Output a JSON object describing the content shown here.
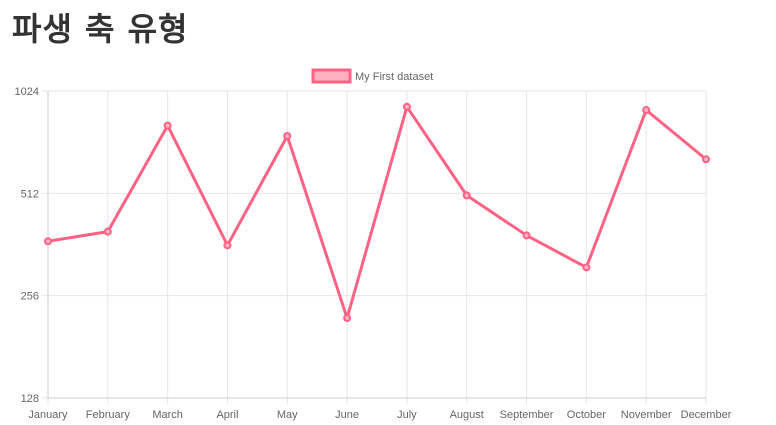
{
  "page": {
    "title": "파생 축 유형"
  },
  "chart_data": {
    "type": "line",
    "categories": [
      "January",
      "February",
      "March",
      "April",
      "May",
      "June",
      "July",
      "August",
      "September",
      "October",
      "November",
      "December"
    ],
    "series": [
      {
        "name": "My First dataset",
        "color": "#ff6384",
        "fill": "#ffb1c1",
        "values": [
          370,
          395,
          810,
          360,
          755,
          220,
          920,
          505,
          385,
          310,
          900,
          645
        ]
      }
    ],
    "y_scale": "log2",
    "ylim": [
      128,
      1024
    ],
    "yticks": [
      128,
      256,
      512,
      1024
    ],
    "grid": true,
    "legend": "top-center"
  }
}
